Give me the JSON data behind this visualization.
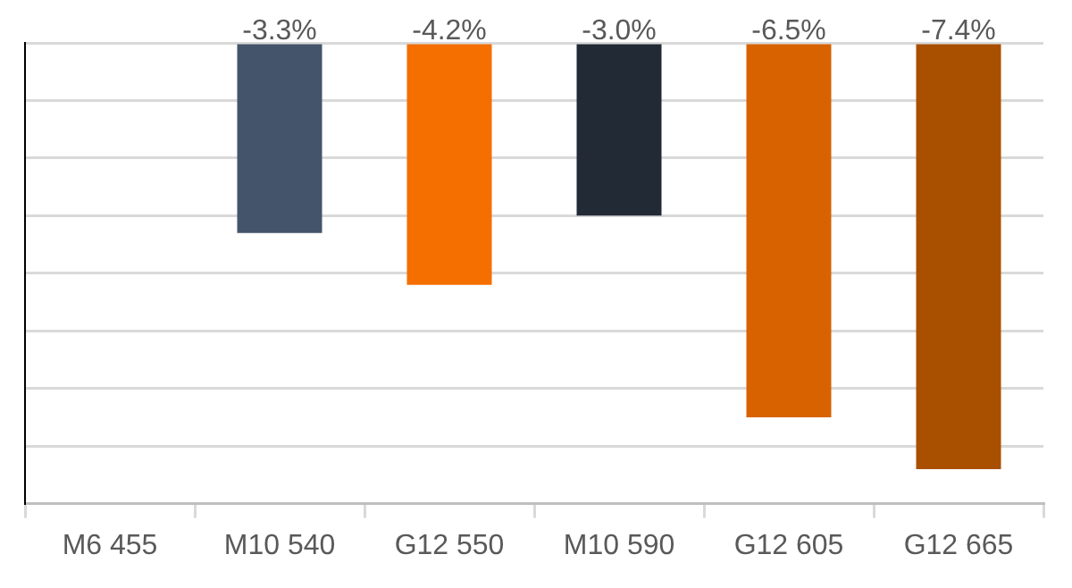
{
  "chart_data": {
    "type": "bar",
    "categories": [
      "M6 455",
      "M10 540",
      "G12 550",
      "M10 590",
      "G12 605",
      "G12 665"
    ],
    "values": [
      null,
      -3.3,
      -4.2,
      -3.0,
      -6.5,
      -7.4
    ],
    "colors": [
      "#44546a",
      "#44546a",
      "#f46e00",
      "#222a35",
      "#d86200",
      "#a84f00"
    ],
    "value_labels": [
      null,
      "-3.3%",
      "-4.2%",
      "-3.0%",
      "-6.5%",
      "-7.4%"
    ],
    "ylim": [
      -8,
      0
    ],
    "yticks": [
      {
        "value": -8,
        "label": null
      },
      {
        "value": -7,
        "label": null
      },
      {
        "value": -6,
        "label": null
      },
      {
        "value": -5,
        "label": null
      },
      {
        "value": -4,
        "label": null
      },
      {
        "value": -3,
        "label": null
      },
      {
        "value": -2,
        "label": null
      },
      {
        "value": -1,
        "label": null
      },
      {
        "value": 0,
        "label": null
      }
    ],
    "grid": "y",
    "tick_labels": "x",
    "legend": false
  }
}
